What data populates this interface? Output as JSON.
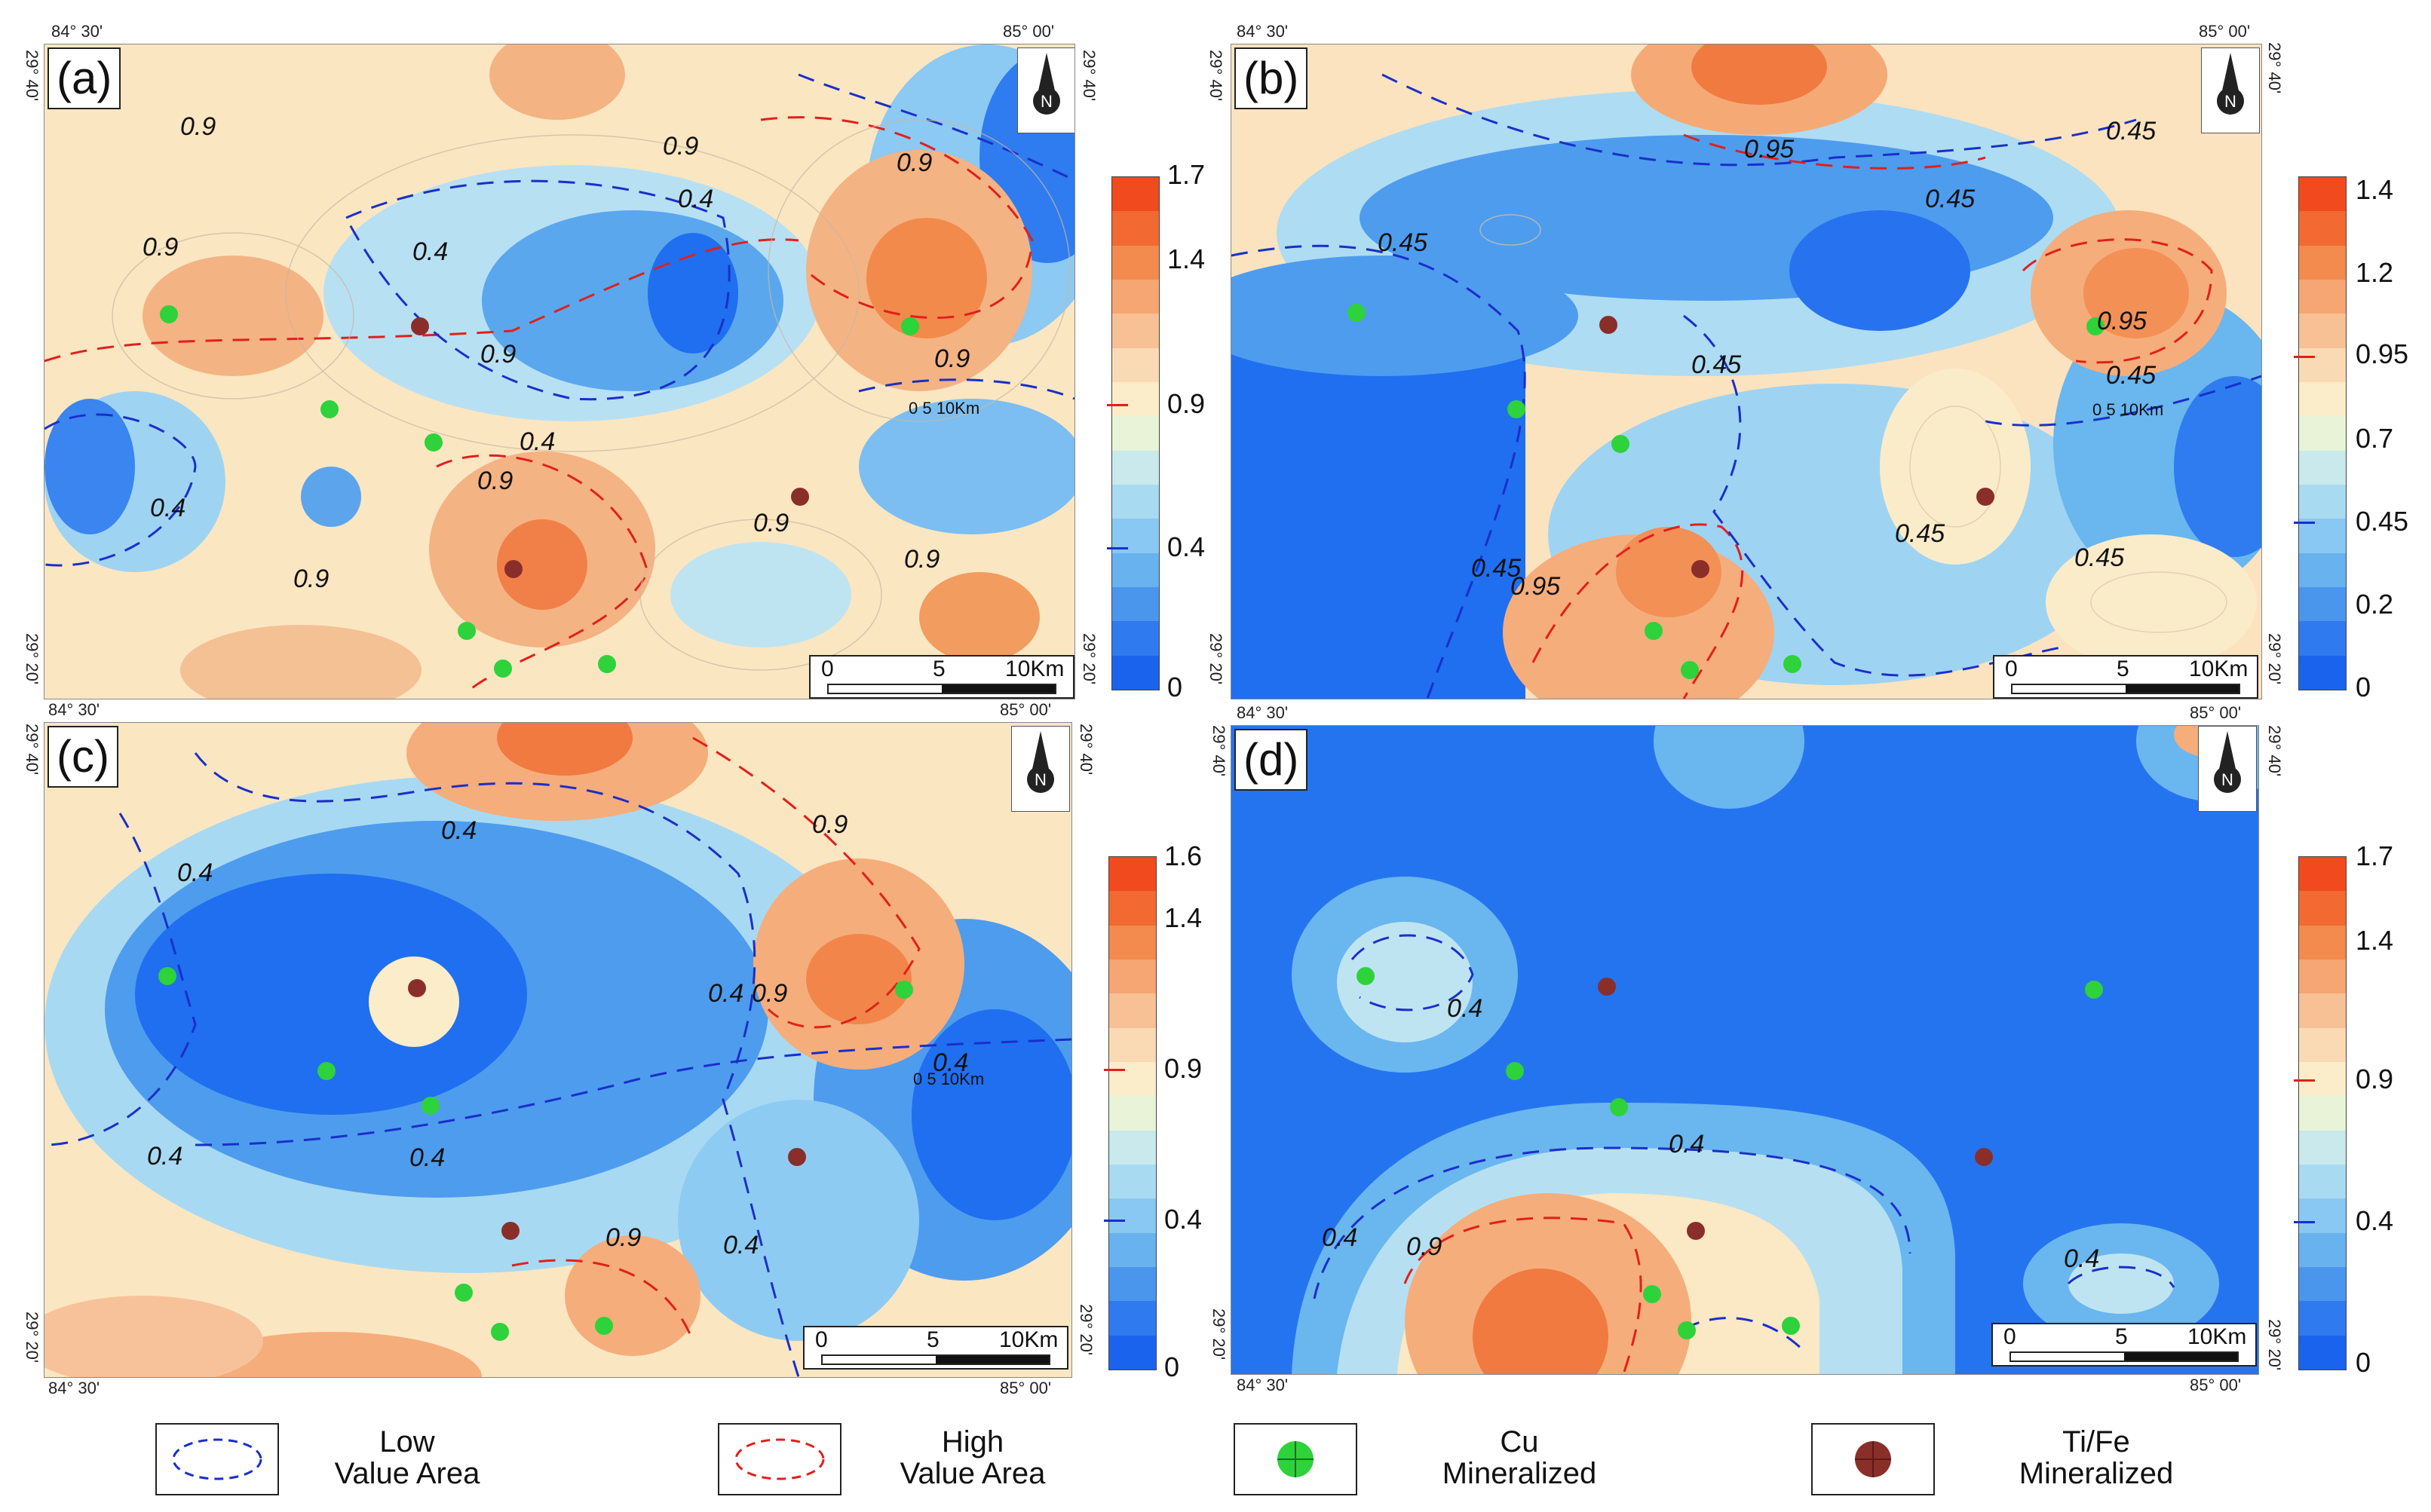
{
  "colors": {
    "low_blue": "#1a6ef0",
    "mid_blue": "#62aef0",
    "light_blue": "#b4e0f2",
    "pale": "#fbeccc",
    "orange": "#f5a874",
    "deep_orange": "#f26a32",
    "red_line": "#e0201c",
    "blue_line": "#1a2fc9",
    "cu_green": "#2ed23a",
    "tife_brown": "#8a2e2a"
  },
  "coords": {
    "lon_west": "84° 30'",
    "lon_east": "85° 00'",
    "lat_north": "29° 40'",
    "lat_south": "29° 20'"
  },
  "scale_bar": {
    "zero": "0",
    "mid": "5",
    "end": "10Km",
    "mini": "0   5  10Km"
  },
  "panels": [
    {
      "label": "(a)",
      "contours": [
        "0.9",
        "0.9",
        "0.9",
        "0.4",
        "0.4",
        "0.4",
        "0.4",
        "0.9",
        "0.9",
        "0.9",
        "0.9",
        "0.9",
        "0.9",
        "0.9"
      ],
      "legend": [
        "1.7",
        "1.4",
        "0.9",
        "0.4",
        "0"
      ]
    },
    {
      "label": "(b)",
      "contours": [
        "0.95",
        "0.45",
        "0.45",
        "0.45",
        "0.45",
        "0.95",
        "0.45",
        "0.45",
        "0.95",
        "0.45",
        "0.45"
      ],
      "legend": [
        "1.4",
        "1.2",
        "0.95",
        "0.7",
        "0.45",
        "0.2",
        "0"
      ]
    },
    {
      "label": "(c)",
      "contours": [
        "0.4",
        "0.4",
        "0.9",
        "0.4",
        "0.9",
        "0.4",
        "0.4",
        "0.4",
        "0.9",
        "0.4"
      ],
      "legend": [
        "1.6",
        "1.4",
        "0.9",
        "0.4",
        "0"
      ]
    },
    {
      "label": "(d)",
      "contours": [
        "0.4",
        "0.4",
        "0.4",
        "0.9",
        "0.4"
      ],
      "legend": [
        "1.7",
        "1.4",
        "0.9",
        "0.4",
        "0"
      ]
    }
  ],
  "key": {
    "low_value": "Low\nValue Area",
    "low_value_l1": "Low",
    "low_value_l2": "Value Area",
    "high_value_l1": "High",
    "high_value_l2": "Value Area",
    "cu_l1": "Cu",
    "cu_l2": "Mineralized",
    "tife_l1": "Ti/Fe",
    "tife_l2": "Mineralized"
  },
  "north_symbol": "N",
  "icons": [
    "north-arrow-icon",
    "cu-mineralized-icon",
    "tife-mineralized-icon",
    "low-value-ellipse-icon",
    "high-value-ellipse-icon"
  ]
}
